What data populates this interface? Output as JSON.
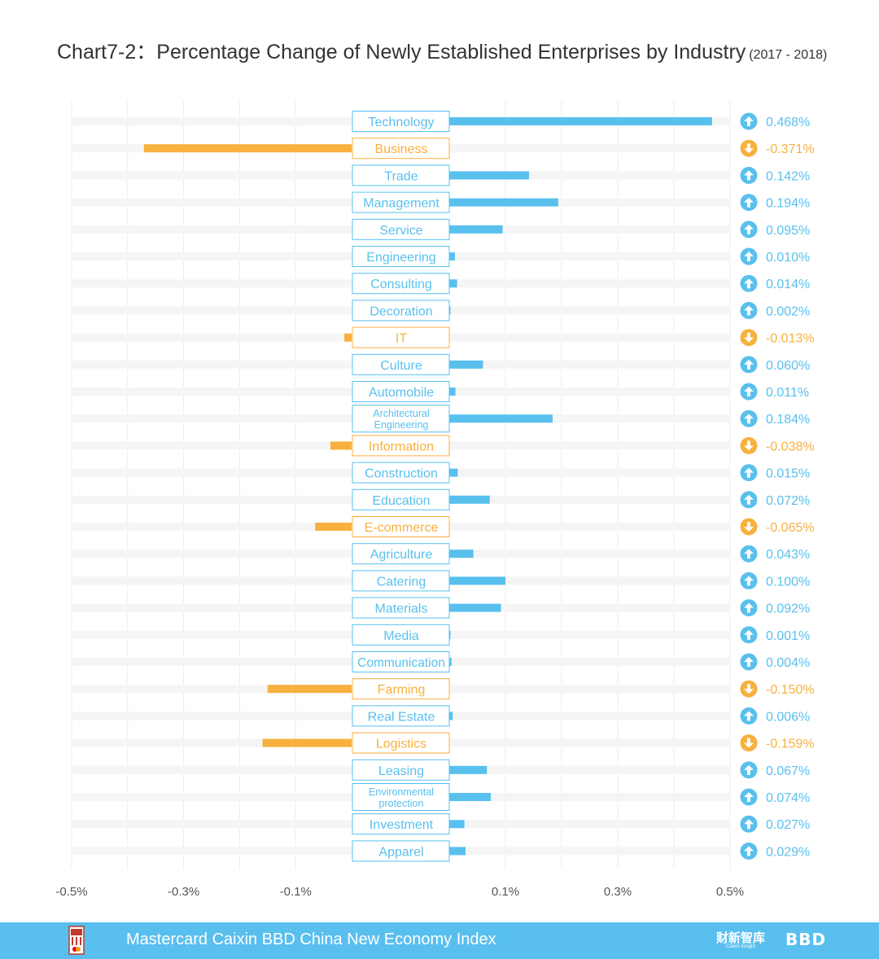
{
  "title": {
    "main": "Chart7-2：Percentage Change of Newly Established Enterprises by Industry",
    "period": "(2017 - 2018)"
  },
  "footer": {
    "text": "Mastercard Caixin BBD China New Economy Index",
    "brand_cn": "财新智库",
    "brand_cn_sub": "Caixin Insight",
    "brand_bbd": "BBD"
  },
  "colors": {
    "positive": "#59c0ee",
    "negative": "#f8b03e",
    "track": "#f5f5f5",
    "grid": "#ececec"
  },
  "chart_data": {
    "type": "bar",
    "orientation": "horizontal",
    "unit": "%",
    "xlim": [
      -0.5,
      0.5
    ],
    "xticks": [
      {
        "value": -0.5,
        "label": "-0.5%"
      },
      {
        "value": -0.3,
        "label": "-0.3%"
      },
      {
        "value": -0.1,
        "label": "-0.1%"
      },
      {
        "value": 0.1,
        "label": "0.1%"
      },
      {
        "value": 0.3,
        "label": "0.3%"
      },
      {
        "value": 0.5,
        "label": "0.5%"
      }
    ],
    "categories": [
      "Technology",
      "Business",
      "Trade",
      "Management",
      "Service",
      "Engineering",
      "Consulting",
      "Decoration",
      "IT",
      "Culture",
      "Automobile",
      "Architectural Engineering",
      "Information",
      "Construction",
      "Education",
      "E-commerce",
      "Agriculture",
      "Catering",
      "Materials",
      "Media",
      "Communication",
      "Farming",
      "Real Estate",
      "Logistics",
      "Leasing",
      "Environmental protection",
      "Investment",
      "Apparel"
    ],
    "category_lines": [
      [
        "Technology"
      ],
      [
        "Business"
      ],
      [
        "Trade"
      ],
      [
        "Management"
      ],
      [
        "Service"
      ],
      [
        "Engineering"
      ],
      [
        "Consulting"
      ],
      [
        "Decoration"
      ],
      [
        "IT"
      ],
      [
        "Culture"
      ],
      [
        "Automobile"
      ],
      [
        "Architectural",
        "Engineering"
      ],
      [
        "Information"
      ],
      [
        "Construction"
      ],
      [
        "Education"
      ],
      [
        "E-commerce"
      ],
      [
        "Agriculture"
      ],
      [
        "Catering"
      ],
      [
        "Materials"
      ],
      [
        "Media"
      ],
      [
        "Communication"
      ],
      [
        "Farming"
      ],
      [
        "Real Estate"
      ],
      [
        "Logistics"
      ],
      [
        "Leasing"
      ],
      [
        "Environmental",
        "protection"
      ],
      [
        "Investment"
      ],
      [
        "Apparel"
      ]
    ],
    "values": [
      0.468,
      -0.371,
      0.142,
      0.194,
      0.095,
      0.01,
      0.014,
      0.002,
      -0.013,
      0.06,
      0.011,
      0.184,
      -0.038,
      0.015,
      0.072,
      -0.065,
      0.043,
      0.1,
      0.092,
      0.001,
      0.004,
      -0.15,
      0.006,
      -0.159,
      0.067,
      0.074,
      0.027,
      0.029
    ],
    "value_labels": [
      "0.468%",
      "-0.371%",
      "0.142%",
      "0.194%",
      "0.095%",
      "0.010%",
      "0.014%",
      "0.002%",
      "-0.013%",
      "0.060%",
      "0.011%",
      "0.184%",
      "-0.038%",
      "0.015%",
      "0.072%",
      "-0.065%",
      "0.043%",
      "0.100%",
      "0.092%",
      "0.001%",
      "0.004%",
      "-0.150%",
      "0.006%",
      "-0.159%",
      "0.067%",
      "0.074%",
      "0.027%",
      "0.029%"
    ]
  }
}
